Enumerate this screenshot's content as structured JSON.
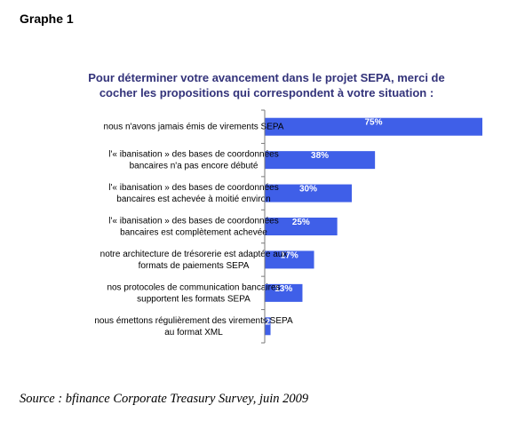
{
  "header": {
    "label": "Graphe 1"
  },
  "source": {
    "text": "Source : bfinance Corporate Treasury Survey, juin 2009"
  },
  "chart_data": {
    "type": "bar",
    "orientation": "horizontal",
    "title_lines": [
      "Pour déterminer votre avancement dans le projet SEPA, merci de",
      "cocher les propositions qui correspondent à votre situation :"
    ],
    "categories": [
      [
        "nous n'avons jamais émis de virements SEPA"
      ],
      [
        "l'« ibanisation » des bases de coordonnées",
        "bancaires n'a pas encore débuté"
      ],
      [
        "l'« ibanisation » des bases de coordonnées",
        "bancaires est achevée à moitié environ"
      ],
      [
        "l'« ibanisation » des bases de coordonnées",
        "bancaires est complètement achevée"
      ],
      [
        "notre architecture de trésorerie est adaptée aux",
        "formats de paiements SEPA"
      ],
      [
        "nos protocoles de communication bancaires",
        "supportent les formats SEPA"
      ],
      [
        "nous émettons régulièrement des virements SEPA",
        "au format XML"
      ]
    ],
    "values": [
      75,
      38,
      30,
      25,
      17,
      13,
      2
    ],
    "value_labels": [
      "75%",
      "38%",
      "30%",
      "25%",
      "17%",
      "13%",
      "2"
    ],
    "xlim": [
      0,
      75
    ],
    "bar_color": "#3f5fe8",
    "axis_color": "#7a7a7a",
    "grid": false,
    "legend": "none"
  }
}
